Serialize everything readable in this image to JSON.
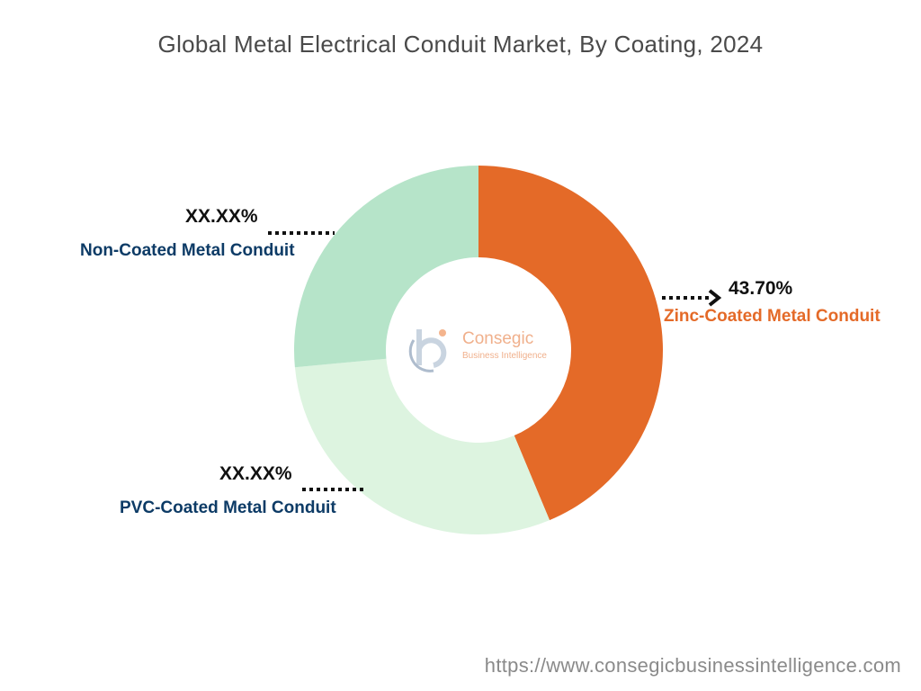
{
  "title": "Global Metal Electrical Conduit Market, By Coating, 2024",
  "colors": {
    "zinc": "#e46a28",
    "pvc": "#ddf4e0",
    "non_coated": "#b6e4c9",
    "label_dark": "#0d3b66",
    "label_accent": "#e46a28"
  },
  "chart_data": {
    "type": "pie",
    "subtype": "donut",
    "title": "Global Metal Electrical Conduit Market, By Coating, 2024",
    "categories": [
      "Zinc-Coated Metal Conduit",
      "PVC-Coated Metal Conduit",
      "Non-Coated Metal Conduit"
    ],
    "values": [
      43.7,
      29.8,
      26.5
    ],
    "value_labels": [
      "43.70%",
      "XX.XX%",
      "XX.XX%"
    ]
  },
  "labels": {
    "zinc": {
      "pct": "43.70%",
      "name": "Zinc-Coated Metal Conduit"
    },
    "pvc": {
      "pct": "XX.XX%",
      "name": "PVC-Coated Metal Conduit"
    },
    "non_coated": {
      "pct": "XX.XX%",
      "name": "Non-Coated Metal Conduit"
    }
  },
  "logo": {
    "name": "Consegic",
    "tagline": "Business Intelligence",
    "icon": "consegic-logo-icon"
  },
  "footer": {
    "url": "https://www.consegicbusinessintelligence.com"
  }
}
